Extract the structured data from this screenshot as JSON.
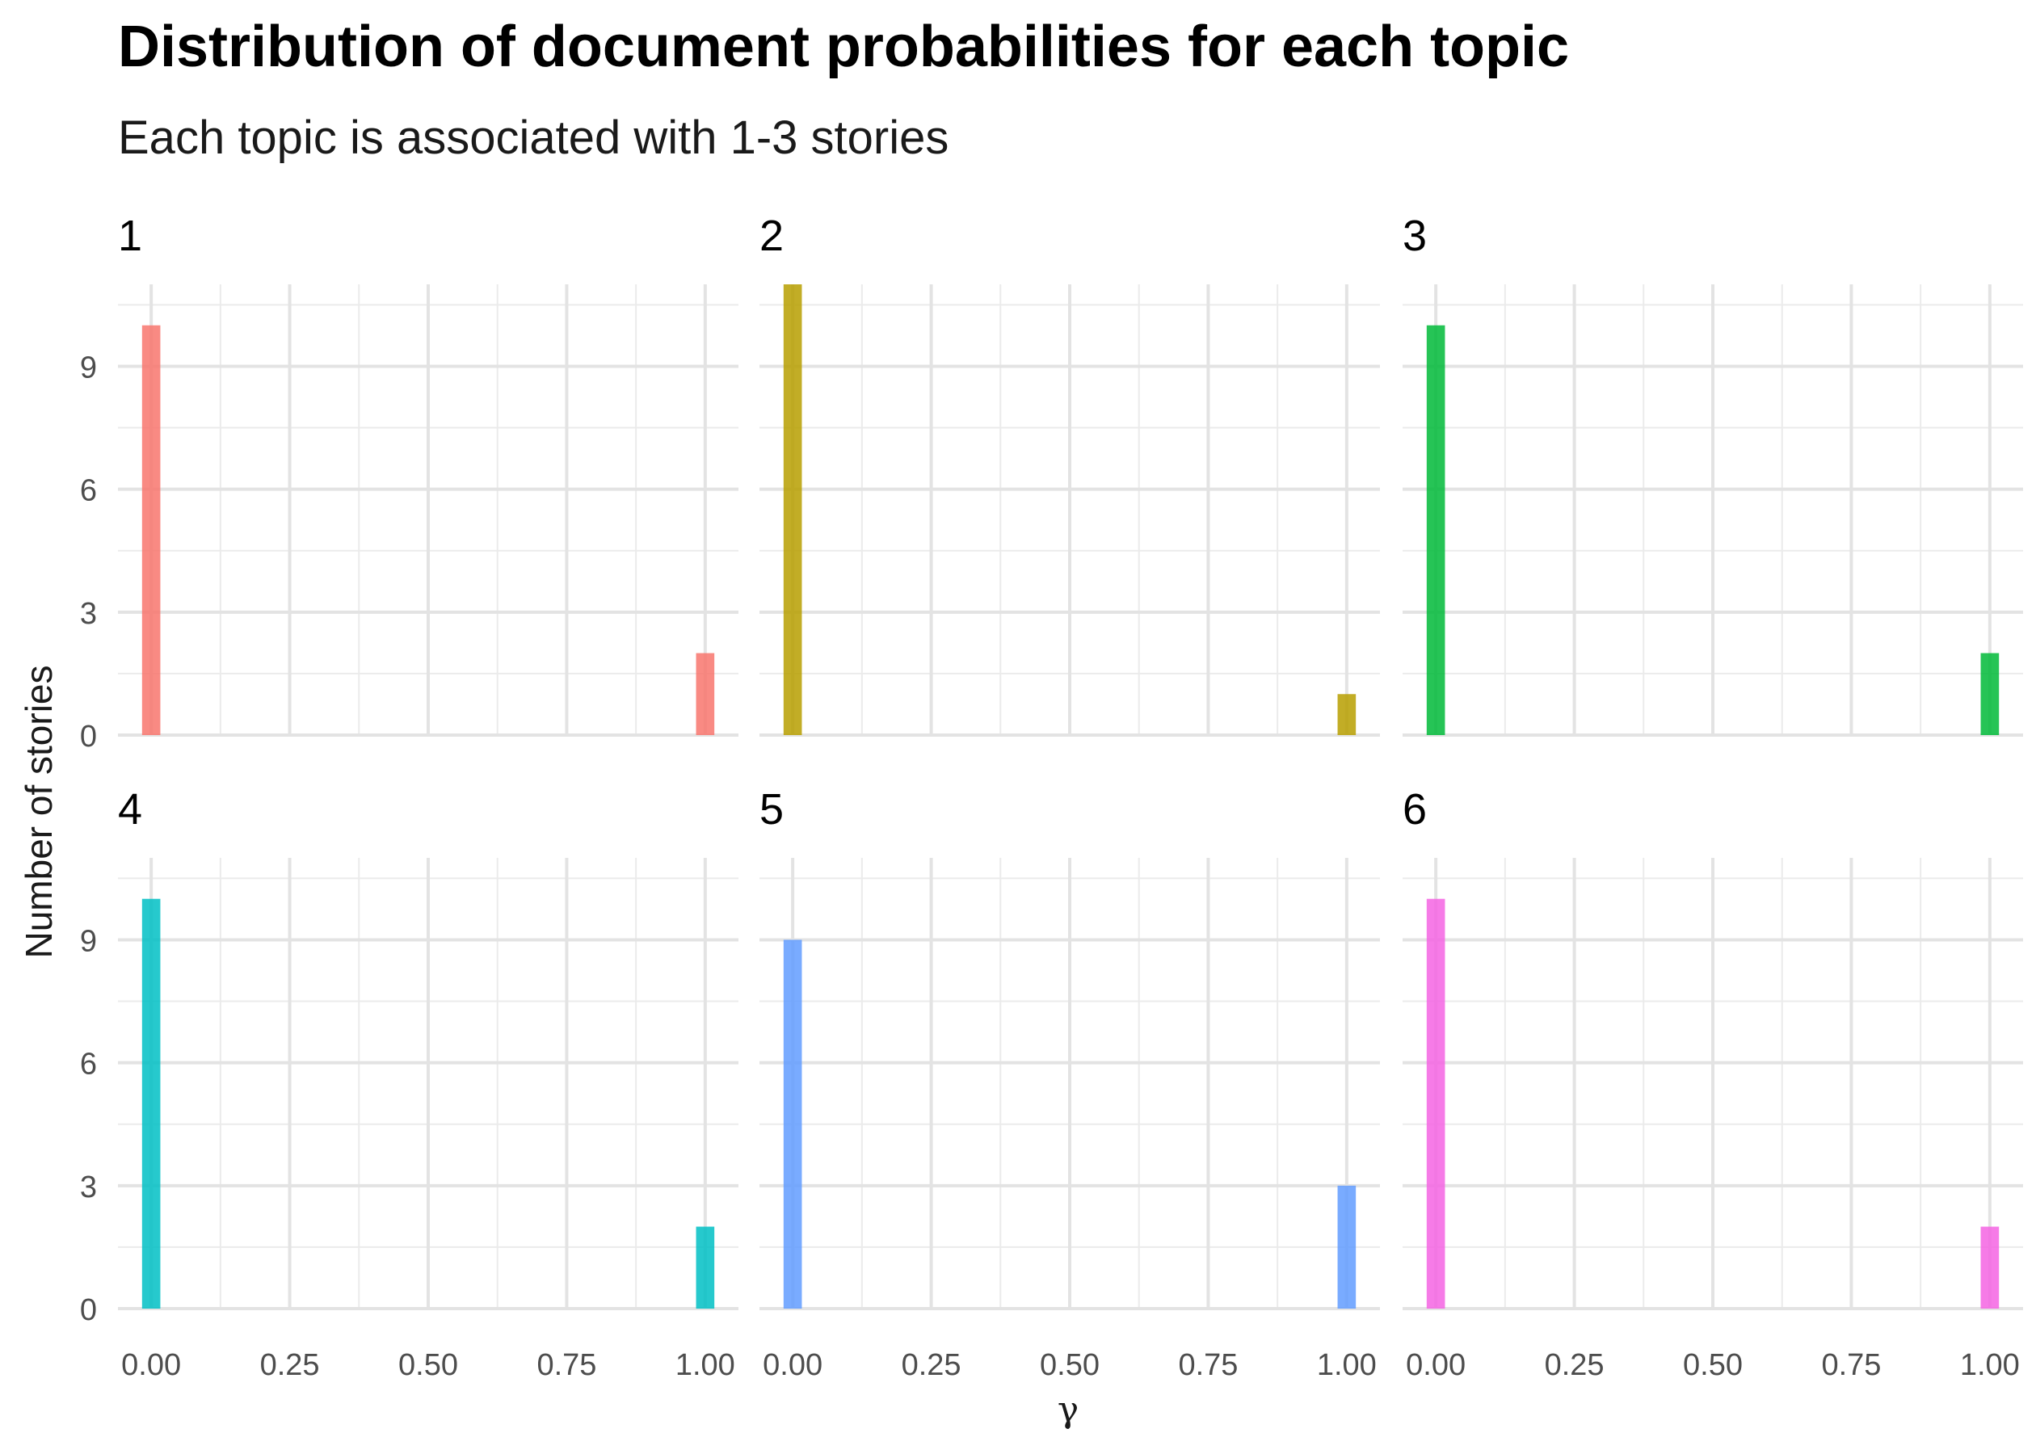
{
  "chart_data": {
    "type": "bar",
    "title": "Distribution of document probabilities for each topic",
    "subtitle": "Each topic is associated with 1-3 stories",
    "xlabel": "γ",
    "ylabel": "Number of stories",
    "x_ticks": [
      "0.00",
      "0.25",
      "0.50",
      "0.75",
      "1.00"
    ],
    "x_tick_values": [
      0,
      0.25,
      0.5,
      0.75,
      1
    ],
    "y_ticks": [
      "0",
      "3",
      "6",
      "9"
    ],
    "y_tick_values": [
      0,
      3,
      6,
      9
    ],
    "xlim": [
      -0.06,
      1.06
    ],
    "ylim": [
      0,
      11
    ],
    "grid": true,
    "legend": "none",
    "bin_width": 0.033,
    "facets": [
      {
        "label": "1",
        "color": "#F8766D",
        "bars": [
          {
            "x": 0.0,
            "count": 10
          },
          {
            "x": 1.0,
            "count": 2
          }
        ]
      },
      {
        "label": "2",
        "color": "#B79F00",
        "bars": [
          {
            "x": 0.0,
            "count": 11
          },
          {
            "x": 1.0,
            "count": 1
          }
        ]
      },
      {
        "label": "3",
        "color": "#00BA38",
        "bars": [
          {
            "x": 0.0,
            "count": 10
          },
          {
            "x": 1.0,
            "count": 2
          }
        ]
      },
      {
        "label": "4",
        "color": "#00BFC4",
        "bars": [
          {
            "x": 0.0,
            "count": 10
          },
          {
            "x": 1.0,
            "count": 2
          }
        ]
      },
      {
        "label": "5",
        "color": "#619CFF",
        "bars": [
          {
            "x": 0.0,
            "count": 9
          },
          {
            "x": 1.0,
            "count": 3
          }
        ]
      },
      {
        "label": "6",
        "color": "#F564E3",
        "bars": [
          {
            "x": 0.0,
            "count": 10
          },
          {
            "x": 1.0,
            "count": 2
          }
        ]
      }
    ]
  }
}
